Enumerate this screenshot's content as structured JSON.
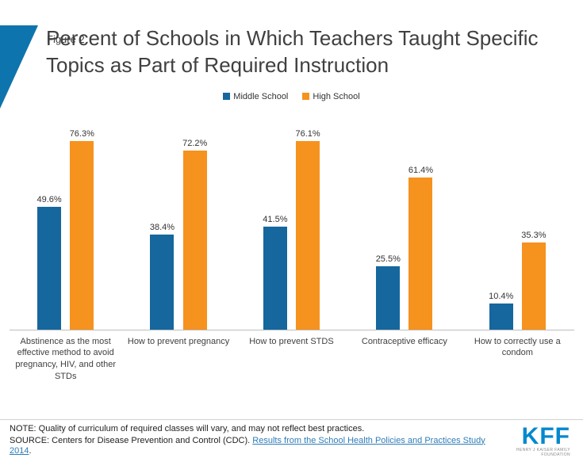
{
  "header": {
    "figure_label": "Figure 2",
    "title": "Percent of Schools in Which Teachers Taught Specific Topics as Part of Required Instruction"
  },
  "legend": [
    {
      "label": "Middle School",
      "color": "#15679e"
    },
    {
      "label": "High School",
      "color": "#f6921e"
    }
  ],
  "chart_data": {
    "type": "bar",
    "title": "Percent of Schools in Which Teachers Taught Specific Topics as Part of Required Instruction",
    "categories": [
      "Abstinence as the most effective method to avoid pregnancy, HIV, and other STDs",
      "How to prevent pregnancy",
      "How to prevent STDS",
      "Contraceptive efficacy",
      "How to correctly use a condom"
    ],
    "series": [
      {
        "name": "Middle School",
        "color": "#15679e",
        "values": [
          49.6,
          38.4,
          41.5,
          25.5,
          10.4
        ]
      },
      {
        "name": "High School",
        "color": "#f6921e",
        "values": [
          76.3,
          72.2,
          76.1,
          61.4,
          35.3
        ]
      }
    ],
    "value_suffix": "%",
    "ylim": [
      0,
      80
    ],
    "grid": false,
    "legend_position": "top"
  },
  "footer": {
    "note": "NOTE: Quality of curriculum of required classes will vary, and may not reflect best practices.",
    "source_prefix": "SOURCE: Centers for Disease Prevention and Control (CDC). ",
    "source_link": "Results from the School Health Policies and Practices Study 2014",
    "source_suffix": ".",
    "logo_text": "KFF",
    "logo_subtext": "HENRY J KAISER FAMILY FOUNDATION"
  }
}
